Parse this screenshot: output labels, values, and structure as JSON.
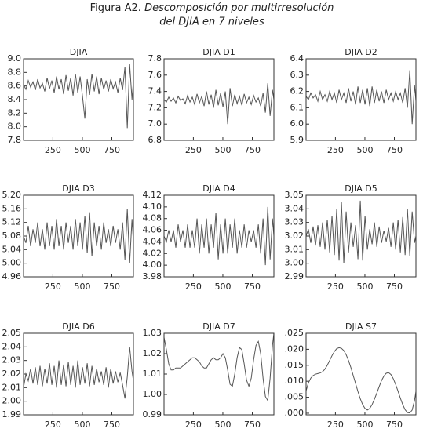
{
  "header": {
    "figure_label": "Figura A2.",
    "title": "Descomposición por multirresolución",
    "subtitle": "del DJIA en 7 niveles"
  },
  "chart_data": [
    {
      "type": "line",
      "title": "DJIA",
      "color": "#555555",
      "xlim": [
        1,
        933
      ],
      "xticks": [
        250,
        500,
        750
      ],
      "ylim": [
        7.8,
        9.0
      ],
      "yticks": [
        7.8,
        {
          "value": 8.0,
          "label": "8.0"
        },
        8.2,
        8.4,
        8.6,
        8.8,
        {
          "value": 9.0,
          "label": "9.0"
        }
      ],
      "x": [
        1,
        21,
        41,
        61,
        81,
        101,
        121,
        141,
        161,
        181,
        201,
        221,
        241,
        261,
        281,
        301,
        321,
        341,
        361,
        381,
        401,
        421,
        441,
        461,
        481,
        501,
        521,
        541,
        561,
        581,
        601,
        621,
        641,
        661,
        681,
        701,
        721,
        741,
        761,
        781,
        801,
        821,
        841,
        861,
        881,
        901,
        921,
        933
      ],
      "values": [
        8.62,
        8.55,
        8.68,
        8.58,
        8.66,
        8.54,
        8.7,
        8.57,
        8.64,
        8.52,
        8.72,
        8.56,
        8.68,
        8.5,
        8.74,
        8.55,
        8.7,
        8.48,
        8.76,
        8.53,
        8.72,
        8.46,
        8.78,
        8.5,
        8.74,
        8.45,
        8.12,
        8.7,
        8.47,
        8.78,
        8.52,
        8.74,
        8.48,
        8.72,
        8.55,
        8.68,
        8.52,
        8.7,
        8.56,
        8.66,
        8.5,
        8.72,
        8.54,
        8.88,
        7.98,
        8.92,
        8.4,
        8.68
      ]
    },
    {
      "type": "line",
      "title": "DJIA D1",
      "color": "#555555",
      "xlim": [
        1,
        933
      ],
      "xticks": [
        250,
        500,
        750
      ],
      "ylim": [
        6.8,
        7.8
      ],
      "yticks": [
        6.8,
        {
          "value": 7.0,
          "label": "7.0"
        },
        7.2,
        7.4,
        7.6,
        7.8
      ],
      "x": [
        1,
        21,
        41,
        61,
        81,
        101,
        121,
        141,
        161,
        181,
        201,
        221,
        241,
        261,
        281,
        301,
        321,
        341,
        361,
        381,
        401,
        421,
        441,
        461,
        481,
        501,
        521,
        541,
        561,
        581,
        601,
        621,
        641,
        661,
        681,
        701,
        721,
        741,
        761,
        781,
        801,
        821,
        841,
        861,
        881,
        901,
        921,
        933
      ],
      "values": [
        7.3,
        7.27,
        7.33,
        7.28,
        7.32,
        7.26,
        7.34,
        7.29,
        7.31,
        7.25,
        7.35,
        7.27,
        7.33,
        7.24,
        7.37,
        7.26,
        7.34,
        7.22,
        7.4,
        7.24,
        7.36,
        7.2,
        7.42,
        7.23,
        7.38,
        7.21,
        7.4,
        7.0,
        7.44,
        7.22,
        7.36,
        7.25,
        7.34,
        7.23,
        7.37,
        7.26,
        7.33,
        7.24,
        7.35,
        7.27,
        7.32,
        7.22,
        7.38,
        7.14,
        7.5,
        7.1,
        7.42,
        7.3
      ]
    },
    {
      "type": "line",
      "title": "DJIA D2",
      "color": "#555555",
      "xlim": [
        1,
        933
      ],
      "xticks": [
        250,
        500,
        750
      ],
      "ylim": [
        5.9,
        6.4
      ],
      "yticks": [
        5.9,
        {
          "value": 6.0,
          "label": "6.0"
        },
        6.1,
        6.2,
        6.3,
        6.4
      ],
      "x": [
        1,
        21,
        41,
        61,
        81,
        101,
        121,
        141,
        161,
        181,
        201,
        221,
        241,
        261,
        281,
        301,
        321,
        341,
        361,
        381,
        401,
        421,
        441,
        461,
        481,
        501,
        521,
        541,
        561,
        581,
        601,
        621,
        641,
        661,
        681,
        701,
        721,
        741,
        761,
        781,
        801,
        821,
        841,
        861,
        881,
        901,
        921,
        933
      ],
      "values": [
        6.17,
        6.15,
        6.19,
        6.16,
        6.18,
        6.14,
        6.2,
        6.15,
        6.18,
        6.14,
        6.2,
        6.15,
        6.19,
        6.13,
        6.21,
        6.15,
        6.19,
        6.13,
        6.22,
        6.14,
        6.2,
        6.12,
        6.23,
        6.13,
        6.21,
        6.12,
        6.22,
        6.11,
        6.23,
        6.13,
        6.21,
        6.14,
        6.2,
        6.13,
        6.21,
        6.15,
        6.19,
        6.14,
        6.2,
        6.15,
        6.19,
        6.13,
        6.22,
        6.1,
        6.33,
        6.0,
        6.24,
        6.14
      ]
    },
    {
      "type": "line",
      "title": "DJIA D3",
      "color": "#555555",
      "xlim": [
        1,
        933
      ],
      "xticks": [
        250,
        500,
        750
      ],
      "ylim": [
        4.96,
        5.2
      ],
      "yticks": [
        4.96,
        {
          "value": 5.0,
          "label": "5.00"
        },
        5.04,
        5.08,
        5.12,
        5.16,
        {
          "value": 5.2,
          "label": "5.20"
        }
      ],
      "x": [
        1,
        21,
        41,
        61,
        81,
        101,
        121,
        141,
        161,
        181,
        201,
        221,
        241,
        261,
        281,
        301,
        321,
        341,
        361,
        381,
        401,
        421,
        441,
        461,
        481,
        501,
        521,
        541,
        561,
        581,
        601,
        621,
        641,
        661,
        681,
        701,
        721,
        741,
        761,
        781,
        801,
        821,
        841,
        861,
        881,
        901,
        921,
        933
      ],
      "values": [
        5.08,
        5.06,
        5.11,
        5.05,
        5.1,
        5.06,
        5.12,
        5.05,
        5.1,
        5.04,
        5.12,
        5.05,
        5.11,
        5.04,
        5.13,
        5.05,
        5.11,
        5.04,
        5.12,
        5.06,
        5.11,
        5.04,
        5.13,
        5.05,
        5.12,
        5.04,
        5.14,
        5.03,
        5.15,
        5.02,
        5.12,
        5.05,
        5.11,
        5.04,
        5.12,
        5.06,
        5.1,
        5.05,
        5.11,
        5.06,
        5.1,
        5.04,
        5.12,
        5.01,
        5.16,
        5.0,
        5.13,
        5.06
      ]
    },
    {
      "type": "line",
      "title": "DJIA D4",
      "color": "#555555",
      "xlim": [
        1,
        933
      ],
      "xticks": [
        250,
        500,
        750
      ],
      "ylim": [
        3.98,
        4.12
      ],
      "yticks": [
        3.98,
        {
          "value": 4.0,
          "label": "4.00"
        },
        4.02,
        4.04,
        4.06,
        4.08,
        {
          "value": 4.1,
          "label": "4.10"
        },
        4.12
      ],
      "x": [
        1,
        21,
        41,
        61,
        81,
        101,
        121,
        141,
        161,
        181,
        201,
        221,
        241,
        261,
        281,
        301,
        321,
        341,
        361,
        381,
        401,
        421,
        441,
        461,
        481,
        501,
        521,
        541,
        561,
        581,
        601,
        621,
        641,
        661,
        681,
        701,
        721,
        741,
        761,
        781,
        801,
        821,
        841,
        861,
        881,
        901,
        921,
        933
      ],
      "values": [
        4.05,
        4.04,
        4.06,
        4.04,
        4.06,
        4.03,
        4.07,
        4.04,
        4.06,
        4.03,
        4.07,
        4.03,
        4.06,
        4.03,
        4.08,
        4.02,
        4.07,
        4.03,
        4.08,
        4.02,
        4.07,
        4.03,
        4.09,
        4.01,
        4.07,
        4.02,
        4.08,
        4.02,
        4.07,
        4.03,
        4.08,
        4.02,
        4.06,
        4.03,
        4.07,
        4.03,
        4.06,
        4.04,
        4.06,
        4.03,
        4.07,
        4.02,
        4.08,
        4.0,
        4.1,
        4.01,
        4.08,
        4.05
      ]
    },
    {
      "type": "line",
      "title": "DJIA D5",
      "color": "#555555",
      "xlim": [
        1,
        933
      ],
      "xticks": [
        250,
        500,
        750
      ],
      "ylim": [
        2.99,
        3.05
      ],
      "yticks": [
        2.99,
        {
          "value": 3.0,
          "label": "3.00"
        },
        3.01,
        3.02,
        3.03,
        3.04,
        3.05
      ],
      "x": [
        1,
        21,
        41,
        61,
        81,
        101,
        121,
        141,
        161,
        181,
        201,
        221,
        241,
        261,
        281,
        301,
        321,
        341,
        361,
        381,
        401,
        421,
        441,
        461,
        481,
        501,
        521,
        541,
        561,
        581,
        601,
        621,
        641,
        661,
        681,
        701,
        721,
        741,
        761,
        781,
        801,
        821,
        841,
        861,
        881,
        901,
        921,
        933
      ],
      "values": [
        3.02,
        3.025,
        3.015,
        3.027,
        3.013,
        3.028,
        3.012,
        3.03,
        3.01,
        3.032,
        3.008,
        3.035,
        3.006,
        3.04,
        3.002,
        3.045,
        3.0,
        3.038,
        3.008,
        3.03,
        3.012,
        3.028,
        3.003,
        3.046,
        3.002,
        3.035,
        3.01,
        3.025,
        3.014,
        3.03,
        3.012,
        3.027,
        3.015,
        3.024,
        3.016,
        3.026,
        3.012,
        3.03,
        3.01,
        3.032,
        3.008,
        3.034,
        3.006,
        3.04,
        3.005,
        3.038,
        3.015,
        3.02
      ]
    },
    {
      "type": "line",
      "title": "DJIA D6",
      "color": "#555555",
      "xlim": [
        1,
        933
      ],
      "xticks": [
        250,
        500,
        750
      ],
      "ylim": [
        1.99,
        2.05
      ],
      "yticks": [
        1.99,
        {
          "value": 2.0,
          "label": "2.00"
        },
        2.01,
        2.02,
        2.03,
        2.04,
        2.05
      ],
      "x": [
        1,
        21,
        41,
        61,
        81,
        101,
        121,
        141,
        161,
        181,
        201,
        221,
        241,
        261,
        281,
        301,
        321,
        341,
        361,
        381,
        401,
        421,
        441,
        461,
        481,
        501,
        521,
        541,
        561,
        581,
        601,
        621,
        641,
        661,
        681,
        701,
        721,
        741,
        761,
        781,
        801,
        821,
        841,
        861,
        881,
        901,
        921,
        933
      ],
      "values": [
        2.01,
        2.02,
        2.015,
        2.024,
        2.013,
        2.025,
        2.012,
        2.026,
        2.011,
        2.024,
        2.013,
        2.028,
        2.012,
        2.026,
        2.01,
        2.03,
        2.012,
        2.027,
        2.011,
        2.029,
        2.012,
        2.026,
        2.01,
        2.03,
        2.012,
        2.025,
        2.013,
        2.028,
        2.011,
        2.026,
        2.012,
        2.024,
        2.014,
        2.022,
        2.012,
        2.025,
        2.01,
        2.024,
        2.013,
        2.022,
        2.014,
        2.021,
        2.012,
        2.002,
        2.018,
        2.04,
        2.022,
        2.015
      ]
    },
    {
      "type": "line",
      "title": "DJIA D7",
      "color": "#555555",
      "xlim": [
        1,
        933
      ],
      "xticks": [
        250,
        500,
        750
      ],
      "ylim": [
        0.99,
        1.03
      ],
      "yticks": [
        0.99,
        {
          "value": 1.0,
          "label": "1.00"
        },
        1.01,
        1.02,
        1.03
      ],
      "x": [
        1,
        21,
        41,
        61,
        81,
        101,
        121,
        141,
        161,
        181,
        201,
        221,
        241,
        261,
        281,
        301,
        321,
        341,
        361,
        381,
        401,
        421,
        441,
        461,
        481,
        501,
        521,
        541,
        561,
        581,
        601,
        621,
        641,
        661,
        681,
        701,
        721,
        741,
        761,
        781,
        801,
        821,
        841,
        861,
        881,
        901,
        921,
        933
      ],
      "values": [
        1.028,
        1.022,
        1.015,
        1.012,
        1.012,
        1.013,
        1.013,
        1.013,
        1.014,
        1.015,
        1.016,
        1.017,
        1.018,
        1.018,
        1.017,
        1.016,
        1.014,
        1.013,
        1.013,
        1.015,
        1.017,
        1.018,
        1.017,
        1.017,
        1.018,
        1.02,
        1.018,
        1.012,
        1.005,
        1.004,
        1.01,
        1.018,
        1.023,
        1.022,
        1.015,
        1.007,
        1.004,
        1.008,
        1.017,
        1.024,
        1.026,
        1.02,
        1.008,
        0.999,
        0.997,
        1.008,
        1.024,
        1.03
      ]
    },
    {
      "type": "line",
      "title": "DJIA S7",
      "color": "#555555",
      "xlim": [
        1,
        933
      ],
      "xticks": [
        250,
        500,
        750
      ],
      "ylim": [
        -0.0005,
        0.025
      ],
      "yticks": [
        {
          "value": 0,
          "label": ".000"
        },
        {
          "value": 0.005,
          "label": ".005"
        },
        {
          "value": 0.01,
          "label": ".010"
        },
        {
          "value": 0.015,
          "label": ".015"
        },
        {
          "value": 0.02,
          "label": ".020"
        },
        {
          "value": 0.025,
          "label": ".025"
        }
      ],
      "x": [
        1,
        21,
        41,
        61,
        81,
        101,
        121,
        141,
        161,
        181,
        201,
        221,
        241,
        261,
        281,
        301,
        321,
        341,
        361,
        381,
        401,
        421,
        441,
        461,
        481,
        501,
        521,
        541,
        561,
        581,
        601,
        621,
        641,
        661,
        681,
        701,
        721,
        741,
        761,
        781,
        801,
        821,
        841,
        861,
        881,
        901,
        921,
        933
      ],
      "values": [
        0.007,
        0.0095,
        0.011,
        0.0118,
        0.0122,
        0.0124,
        0.0126,
        0.013,
        0.0138,
        0.015,
        0.0165,
        0.018,
        0.0193,
        0.0202,
        0.0205,
        0.0203,
        0.0196,
        0.0183,
        0.0165,
        0.0143,
        0.0118,
        0.0093,
        0.0068,
        0.0045,
        0.0027,
        0.0015,
        0.001,
        0.0015,
        0.0027,
        0.0044,
        0.0063,
        0.0083,
        0.0102,
        0.0116,
        0.0125,
        0.0127,
        0.0121,
        0.0108,
        0.009,
        0.0069,
        0.0047,
        0.0027,
        0.0011,
        0.0002,
        0.0001,
        0.001,
        0.004,
        0.0068
      ]
    }
  ]
}
